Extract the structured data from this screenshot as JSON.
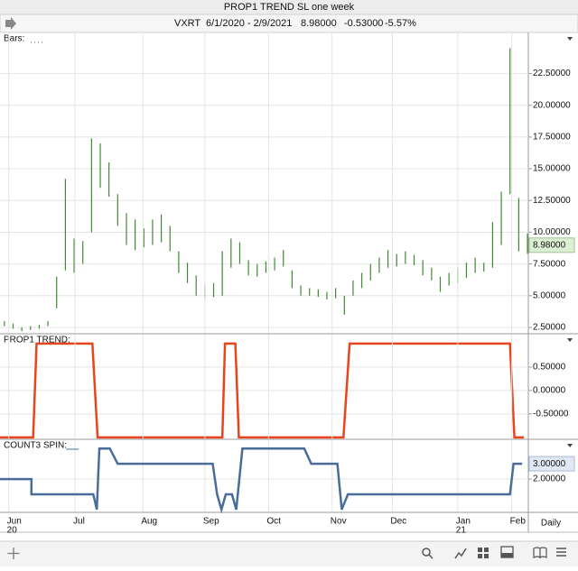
{
  "window_title": "PROP1 TREND SL one week",
  "header": {
    "symbol": "VXRT",
    "range": "6/1/2020 - 2/9/2021",
    "last": "8.98000",
    "change": "-0.53000",
    "change_pct": "-5.57%"
  },
  "interval": "Daily",
  "chart_data": [
    {
      "type": "ohlc",
      "title": "Bars:",
      "color": "#3d8b2f",
      "categories": [
        null,
        null,
        null,
        null,
        null,
        null,
        null,
        null,
        null,
        null,
        null,
        null,
        null,
        null,
        null,
        null,
        null,
        null,
        null,
        null,
        null,
        null,
        null,
        null,
        null,
        null,
        null,
        null,
        null,
        null,
        null,
        null,
        null,
        null,
        null,
        null,
        null,
        null,
        null,
        null,
        null,
        null,
        null,
        null,
        null,
        null,
        null,
        null,
        null,
        null,
        null,
        null,
        null,
        null,
        null,
        null,
        null,
        null,
        null,
        null,
        null
      ],
      "series": [
        {
          "name": "high",
          "values": [
            3.0,
            2.8,
            2.5,
            2.6,
            2.7,
            3.0,
            6.5,
            14.2,
            9.5,
            9.3,
            17.4,
            17.0,
            15.5,
            13.0,
            11.5,
            11.0,
            10.3,
            11.0,
            11.4,
            10.5,
            8.5,
            7.6,
            6.6,
            5.8,
            6.0,
            8.5,
            9.5,
            9.2,
            7.8,
            7.5,
            7.7,
            8.0,
            8.6,
            7.0,
            5.8,
            5.6,
            5.5,
            5.3,
            5.6,
            5.0,
            6.2,
            6.8,
            7.5,
            8.0,
            8.6,
            8.3,
            8.5,
            8.2,
            7.8,
            7.2,
            6.5,
            6.8,
            7.2,
            7.6,
            8.0,
            7.6,
            10.8,
            13.2,
            24.5,
            12.7,
            9.9
          ]
        },
        {
          "name": "low",
          "values": [
            2.6,
            2.4,
            2.2,
            2.3,
            2.4,
            2.6,
            4.0,
            7.0,
            6.8,
            7.5,
            10.0,
            13.5,
            12.8,
            10.5,
            9.0,
            8.6,
            8.8,
            9.0,
            9.2,
            8.5,
            6.8,
            6.0,
            5.0,
            4.8,
            4.9,
            5.0,
            7.2,
            7.5,
            6.6,
            6.5,
            6.8,
            7.0,
            7.3,
            5.6,
            5.0,
            5.0,
            4.9,
            4.7,
            4.8,
            3.5,
            5.0,
            5.6,
            6.2,
            6.8,
            7.2,
            7.3,
            7.5,
            7.4,
            6.6,
            6.2,
            5.3,
            5.8,
            6.0,
            6.4,
            6.8,
            6.9,
            7.2,
            9.0,
            13.0,
            8.5,
            8.3
          ]
        }
      ],
      "last_label": {
        "value": 8.98,
        "label": "8.98000"
      },
      "xlim": [
        -0.5,
        60.1
      ],
      "ylim": [
        2.0,
        25.74
      ],
      "yticks": [
        {
          "value": 2.5,
          "label": "2.50000"
        },
        {
          "value": 5,
          "label": "5.00000"
        },
        {
          "value": 7.5,
          "label": "7.50000"
        },
        {
          "value": 10,
          "label": "10.00000"
        },
        {
          "value": 12.5,
          "label": "12.50000"
        },
        {
          "value": 15,
          "label": "15.00000"
        },
        {
          "value": 17.5,
          "label": "17.50000"
        },
        {
          "value": 20,
          "label": "20.00000"
        },
        {
          "value": 22.5,
          "label": "22.50000"
        }
      ]
    },
    {
      "type": "line",
      "title": "PROP1 TREND:",
      "x": [
        -0.5,
        3.3,
        3.7,
        10.1,
        10.7,
        25,
        25.3,
        26.5,
        26.9,
        38.9,
        39.6,
        58,
        58.5,
        59.6
      ],
      "series": [
        {
          "name": "PROP1 TREND",
          "color": "#e8441e",
          "values": [
            -1,
            -1,
            1,
            1,
            -1,
            -1,
            1,
            1,
            -1,
            -1,
            1,
            1,
            -1,
            -1
          ]
        }
      ],
      "xlim": [
        -0.5,
        60.1
      ],
      "ylim": [
        -1.04,
        1.21
      ],
      "yticks": [
        {
          "value": -0.5,
          "label": "-0.50000"
        },
        {
          "value": 0,
          "label": "0.00000"
        },
        {
          "value": 0.5,
          "label": "0.50000"
        }
      ]
    },
    {
      "type": "line",
      "title": "COUNT3 SPIN:",
      "x": [
        -0.5,
        3.1,
        3.1,
        10.2,
        10.6,
        10.9,
        12.1,
        13,
        23.9,
        24.4,
        24.9,
        25.4,
        26.1,
        26.6,
        27.3,
        34.4,
        35.2,
        38.2,
        38.7,
        39.4,
        58,
        58.4,
        59.4
      ],
      "series": [
        {
          "name": "COUNT3 SPIN",
          "color": "#4a6c9b",
          "values": [
            2,
            2,
            1,
            1,
            0,
            4,
            4,
            3,
            3,
            1,
            0,
            1,
            1,
            0,
            4,
            4,
            3,
            3,
            0,
            1,
            1,
            3,
            3
          ]
        }
      ],
      "last_label": {
        "value": 3,
        "label": "3.00000"
      },
      "xlim": [
        -0.5,
        60.1
      ],
      "ylim": [
        -0.18,
        4.6
      ],
      "yticks": [
        {
          "value": 2,
          "label": "2.00000"
        }
      ],
      "xticks": [
        {
          "value": 0.5,
          "label": "Jun"
        },
        {
          "value": 8.1,
          "label": "Jul"
        },
        {
          "value": 15.9,
          "label": "Aug"
        },
        {
          "value": 23,
          "label": "Sep"
        },
        {
          "value": 30.3,
          "label": "Oct"
        },
        {
          "value": 37.6,
          "label": "Nov"
        },
        {
          "value": 44.5,
          "label": "Dec"
        },
        {
          "value": 52,
          "label": "Jan"
        },
        {
          "value": 58.2,
          "label": "Feb"
        }
      ],
      "year_ticks": [
        {
          "value": 0.5,
          "label": "20"
        },
        {
          "value": 52,
          "label": "21"
        }
      ]
    }
  ]
}
